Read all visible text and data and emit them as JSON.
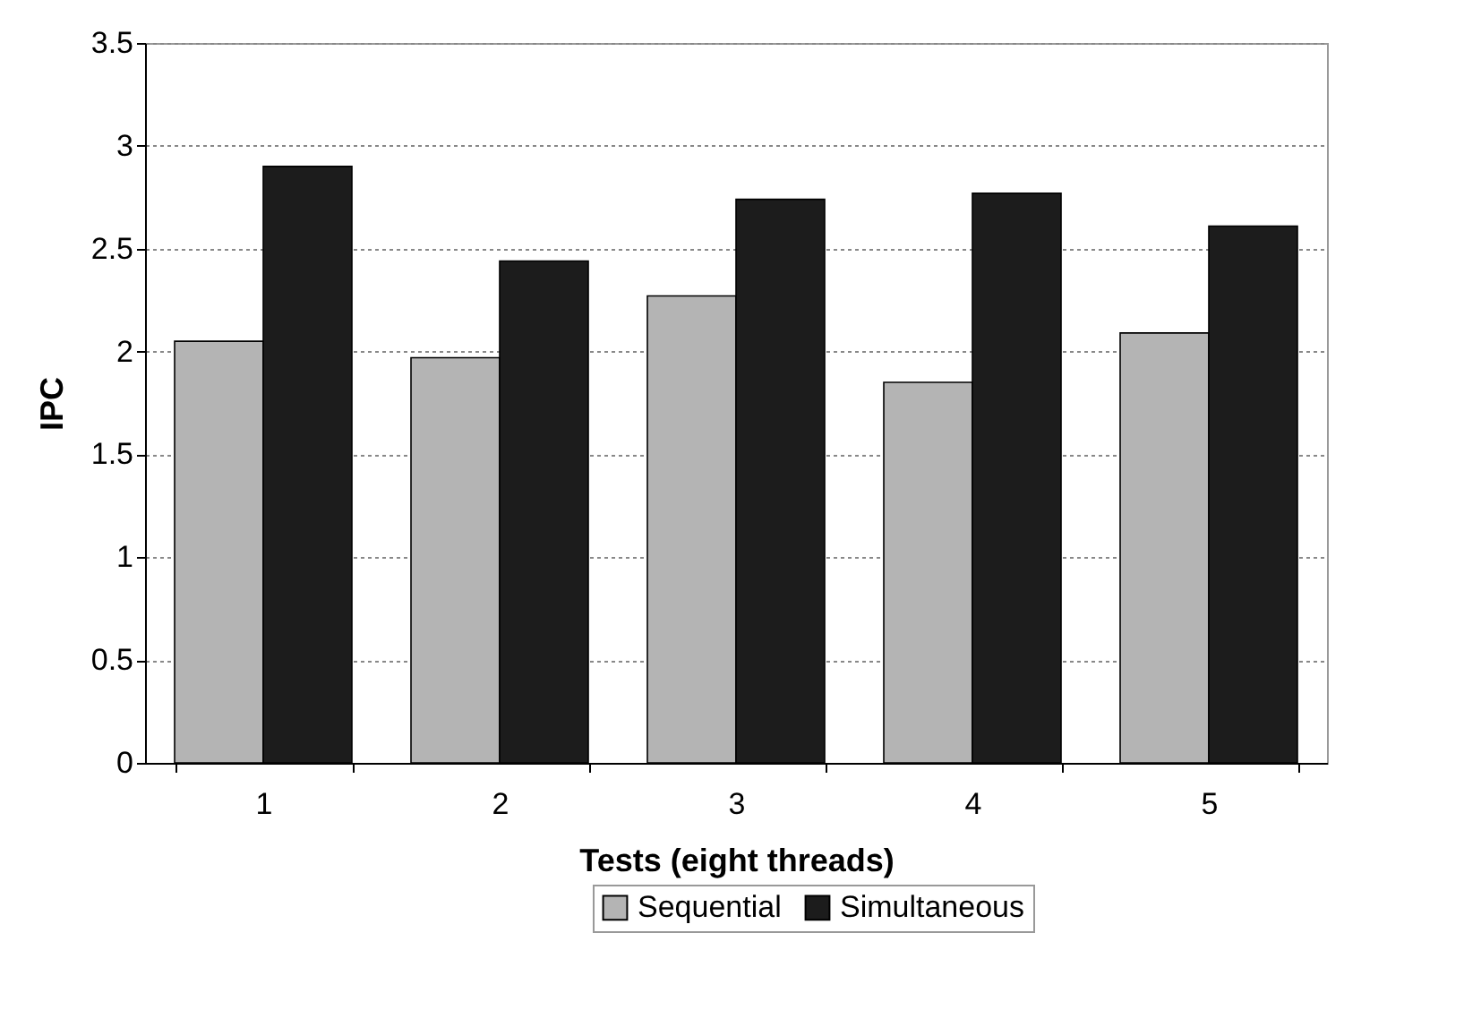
{
  "chart_data": {
    "type": "bar",
    "xlabel": "Tests (eight threads)",
    "ylabel": "IPC",
    "categories": [
      "1",
      "2",
      "3",
      "4",
      "5"
    ],
    "series": [
      {
        "name": "Sequential",
        "color": "#b4b4b4",
        "values": [
          2.05,
          1.97,
          2.27,
          1.85,
          2.09
        ]
      },
      {
        "name": "Simultaneous",
        "color": "#1c1c1c",
        "values": [
          2.9,
          2.44,
          2.74,
          2.77,
          2.61
        ]
      }
    ],
    "ylim": [
      0,
      3.5
    ],
    "yticks": [
      0,
      0.5,
      1,
      1.5,
      2,
      2.5,
      3,
      3.5
    ],
    "grid": "y",
    "legend": "bottom"
  }
}
